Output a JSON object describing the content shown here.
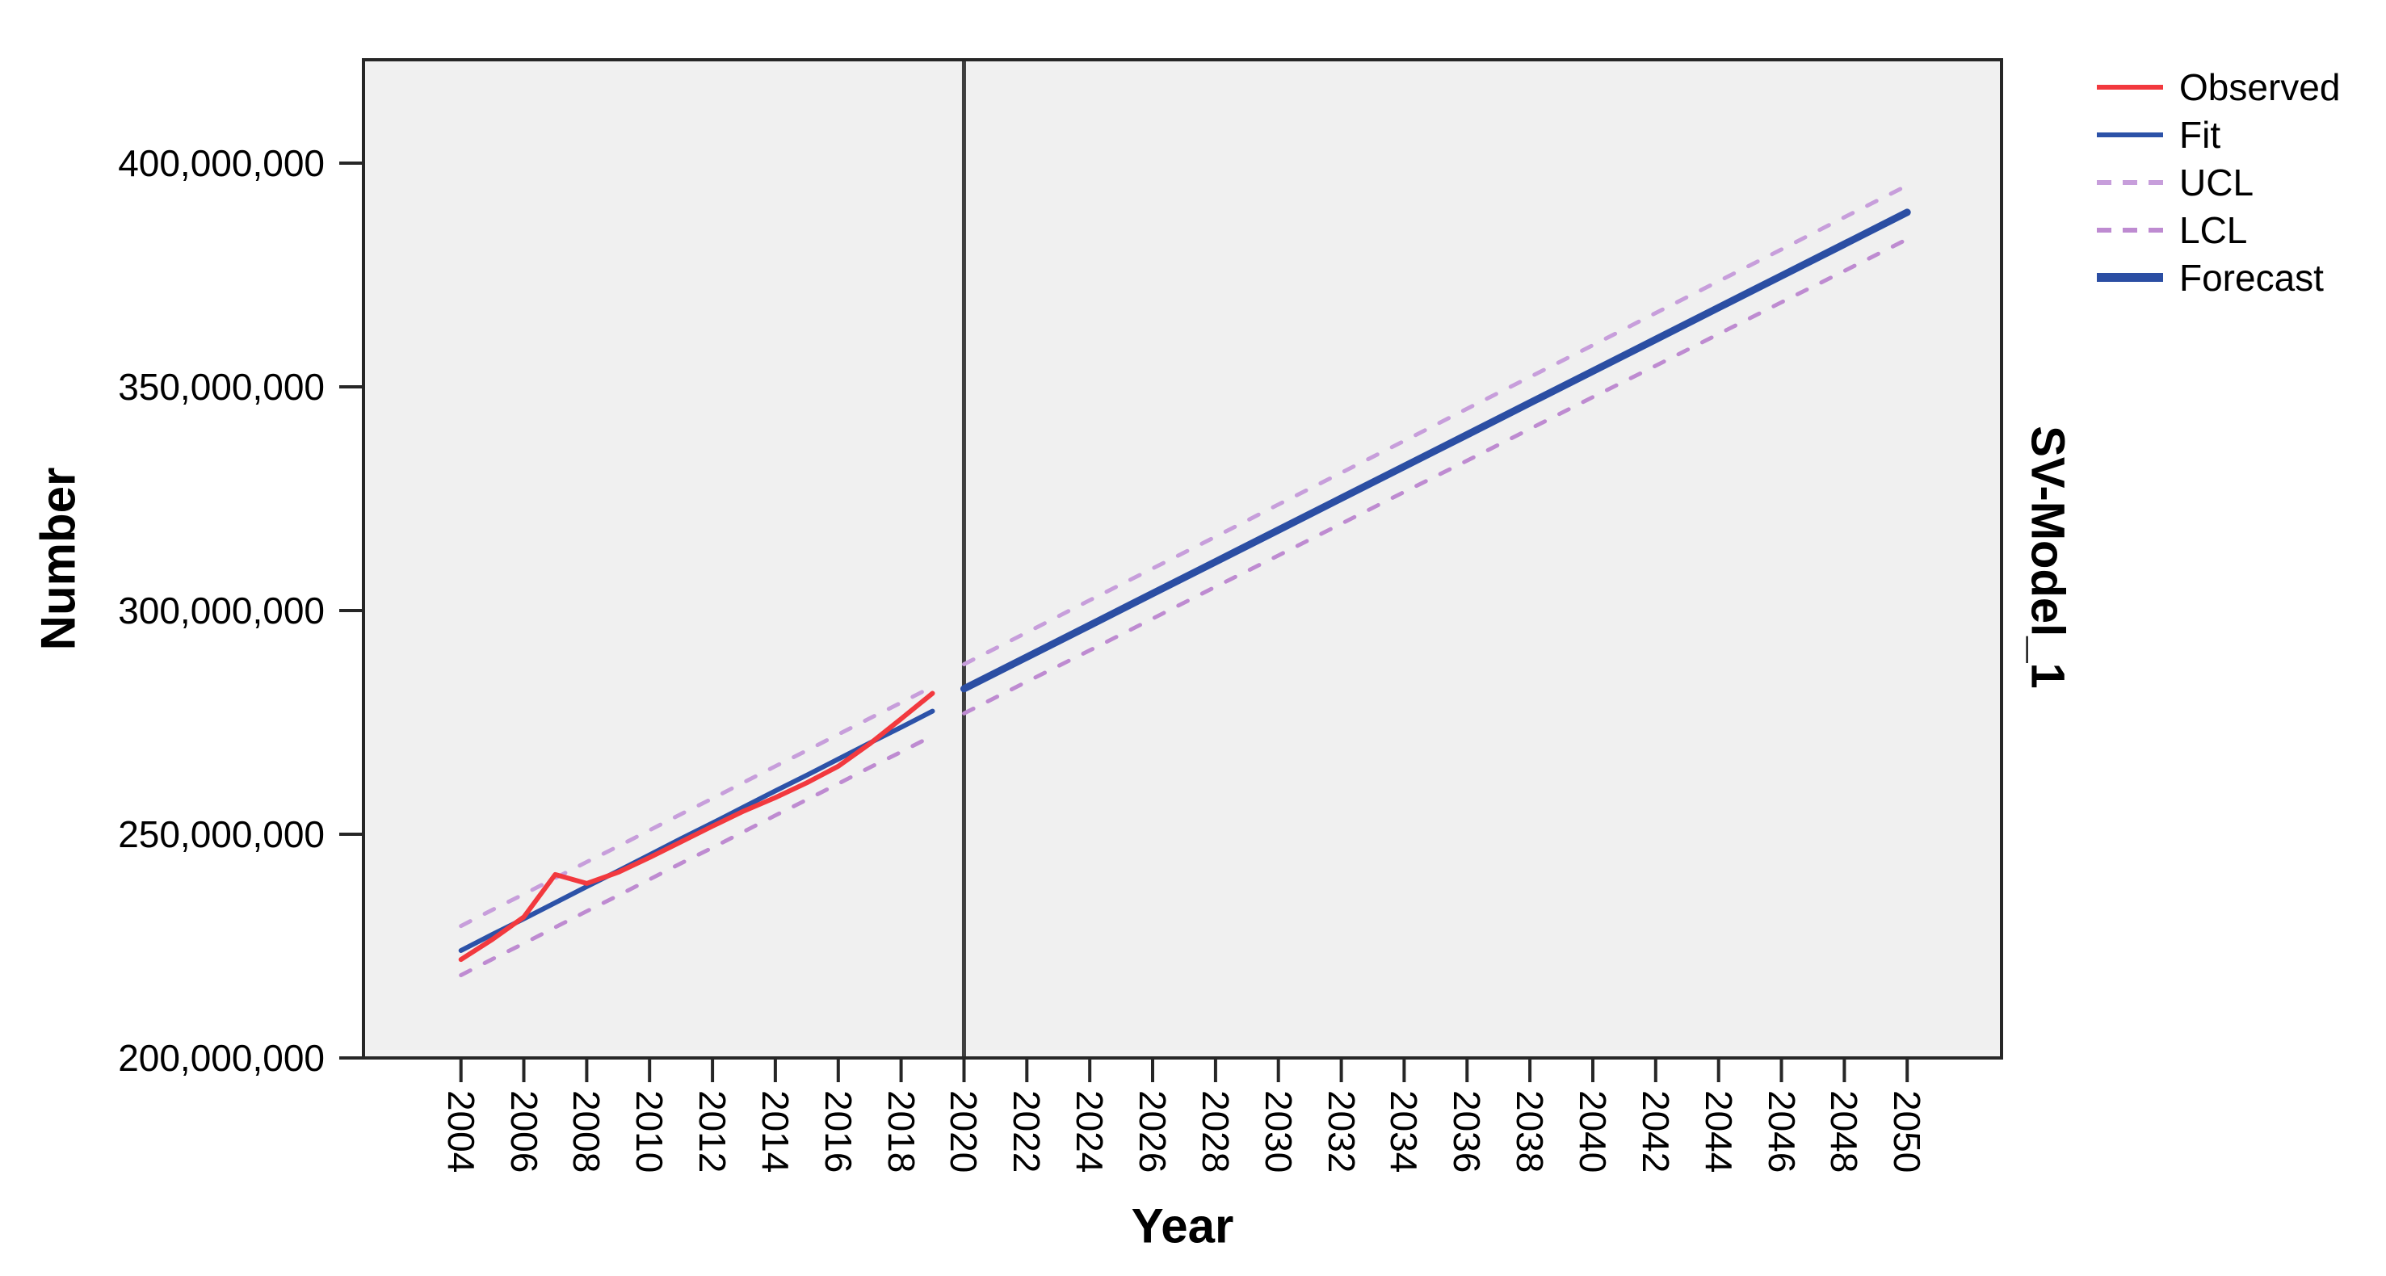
{
  "model_label": "SV-Model_1",
  "colors": {
    "observed": "#F2393E",
    "fit": "#2C52A8",
    "forecast": "#2B4EA3",
    "ucl": "#C79EDB",
    "lcl": "#BE8BD1",
    "plot_background": "#F0F0F0",
    "frame": "#262626",
    "separator": "#3E3E3E"
  },
  "legend": {
    "items": [
      {
        "label": "Observed",
        "color": "#F2393E",
        "dashed": false,
        "thick": false
      },
      {
        "label": "Fit",
        "color": "#2C52A8",
        "dashed": false,
        "thick": false
      },
      {
        "label": "UCL",
        "color": "#C79EDB",
        "dashed": true,
        "thick": false
      },
      {
        "label": "LCL",
        "color": "#BE8BD1",
        "dashed": true,
        "thick": false
      },
      {
        "label": "Forecast",
        "color": "#2B4EA3",
        "dashed": false,
        "thick": true
      }
    ]
  },
  "chart_data": {
    "type": "line",
    "title": "",
    "xlabel": "Year",
    "ylabel": "Number",
    "legend_position": "top-right-outside",
    "grid": false,
    "plot_background": "#F0F0F0",
    "separator_year": 2020,
    "x_axis": {
      "range": [
        2000.9,
        2053.0
      ],
      "tick_years": [
        2004,
        2006,
        2008,
        2010,
        2012,
        2014,
        2016,
        2018,
        2020,
        2022,
        2024,
        2026,
        2028,
        2030,
        2032,
        2034,
        2036,
        2038,
        2040,
        2042,
        2044,
        2046,
        2048,
        2050
      ]
    },
    "y_axis": {
      "range": [
        200000000,
        423100000
      ],
      "tick_values": [
        400000000,
        350000000,
        300000000,
        250000000,
        200000000
      ],
      "tick_labels": [
        "400,000,000",
        "350,000,000",
        "300,000,000",
        "250,000,000",
        "200,000,000"
      ]
    },
    "series": [
      {
        "name": "UCL",
        "color": "#C79EDB",
        "width": 5,
        "dash": "13 20",
        "points": [
          [
            2004,
            229500000
          ],
          [
            2005,
            233100000
          ],
          [
            2006,
            236600000
          ],
          [
            2007,
            240200000
          ],
          [
            2008,
            243800000
          ],
          [
            2009,
            247300000
          ],
          [
            2010,
            250900000
          ],
          [
            2011,
            254500000
          ],
          [
            2012,
            258000000
          ],
          [
            2013,
            261600000
          ],
          [
            2014,
            265200000
          ],
          [
            2015,
            268700000
          ],
          [
            2016,
            272300000
          ],
          [
            2017,
            275900000
          ],
          [
            2018,
            279400000
          ],
          [
            2019,
            283000000
          ]
        ]
      },
      {
        "name": "LCL",
        "color": "#BE8BD1",
        "width": 5,
        "dash": "13 20",
        "points": [
          [
            2004,
            218500000
          ],
          [
            2005,
            222100000
          ],
          [
            2006,
            225600000
          ],
          [
            2007,
            229200000
          ],
          [
            2008,
            232800000
          ],
          [
            2009,
            236300000
          ],
          [
            2010,
            239900000
          ],
          [
            2011,
            243500000
          ],
          [
            2012,
            247000000
          ],
          [
            2013,
            250600000
          ],
          [
            2014,
            254200000
          ],
          [
            2015,
            257700000
          ],
          [
            2016,
            261300000
          ],
          [
            2017,
            264900000
          ],
          [
            2018,
            268400000
          ],
          [
            2019,
            272000000
          ]
        ]
      },
      {
        "name": "UCL forecast",
        "color": "#C79EDB",
        "width": 5,
        "dash": "13 20",
        "points": [
          [
            2020,
            288000000
          ],
          [
            2022,
            295100000
          ],
          [
            2024,
            302300000
          ],
          [
            2026,
            309400000
          ],
          [
            2028,
            316500000
          ],
          [
            2030,
            323700000
          ],
          [
            2032,
            330800000
          ],
          [
            2034,
            337900000
          ],
          [
            2036,
            345100000
          ],
          [
            2038,
            352200000
          ],
          [
            2040,
            359300000
          ],
          [
            2042,
            366500000
          ],
          [
            2044,
            373600000
          ],
          [
            2046,
            380700000
          ],
          [
            2048,
            387900000
          ],
          [
            2050,
            395000000
          ]
        ]
      },
      {
        "name": "LCL forecast",
        "color": "#BE8BD1",
        "width": 5,
        "dash": "13 20",
        "points": [
          [
            2020,
            277000000
          ],
          [
            2022,
            284100000
          ],
          [
            2024,
            291100000
          ],
          [
            2026,
            298200000
          ],
          [
            2028,
            305300000
          ],
          [
            2030,
            312300000
          ],
          [
            2032,
            319400000
          ],
          [
            2034,
            326500000
          ],
          [
            2036,
            333500000
          ],
          [
            2038,
            340600000
          ],
          [
            2040,
            347700000
          ],
          [
            2042,
            354700000
          ],
          [
            2044,
            361800000
          ],
          [
            2046,
            368900000
          ],
          [
            2048,
            375900000
          ],
          [
            2050,
            383000000
          ]
        ]
      },
      {
        "name": "Fit",
        "color": "#2C52A8",
        "width": 6,
        "dash": null,
        "points": [
          [
            2004,
            224000000
          ],
          [
            2005,
            227600000
          ],
          [
            2006,
            231100000
          ],
          [
            2007,
            234700000
          ],
          [
            2008,
            238300000
          ],
          [
            2009,
            241800000
          ],
          [
            2010,
            245400000
          ],
          [
            2011,
            249000000
          ],
          [
            2012,
            252500000
          ],
          [
            2013,
            256100000
          ],
          [
            2014,
            259700000
          ],
          [
            2015,
            263200000
          ],
          [
            2016,
            266800000
          ],
          [
            2017,
            270400000
          ],
          [
            2018,
            273900000
          ],
          [
            2019,
            277500000
          ]
        ]
      },
      {
        "name": "Observed",
        "color": "#F2393E",
        "width": 6,
        "dash": null,
        "points": [
          [
            2004,
            222000000
          ],
          [
            2005,
            226500000
          ],
          [
            2006,
            231500000
          ],
          [
            2007,
            241000000
          ],
          [
            2008,
            239000000
          ],
          [
            2009,
            241500000
          ],
          [
            2010,
            244800000
          ],
          [
            2011,
            248300000
          ],
          [
            2012,
            251800000
          ],
          [
            2013,
            255200000
          ],
          [
            2014,
            258200000
          ],
          [
            2015,
            261500000
          ],
          [
            2016,
            265200000
          ],
          [
            2017,
            270200000
          ],
          [
            2018,
            275800000
          ],
          [
            2019,
            281500000
          ]
        ]
      },
      {
        "name": "Forecast",
        "color": "#2B4EA3",
        "width": 9,
        "dash": null,
        "points": [
          [
            2020,
            282500000
          ],
          [
            2022,
            289600000
          ],
          [
            2024,
            296700000
          ],
          [
            2026,
            303800000
          ],
          [
            2028,
            310900000
          ],
          [
            2030,
            318000000
          ],
          [
            2032,
            325100000
          ],
          [
            2034,
            332200000
          ],
          [
            2036,
            339300000
          ],
          [
            2038,
            346400000
          ],
          [
            2040,
            353500000
          ],
          [
            2042,
            360600000
          ],
          [
            2044,
            367700000
          ],
          [
            2046,
            374800000
          ],
          [
            2048,
            381900000
          ],
          [
            2050,
            389000000
          ]
        ]
      }
    ]
  }
}
